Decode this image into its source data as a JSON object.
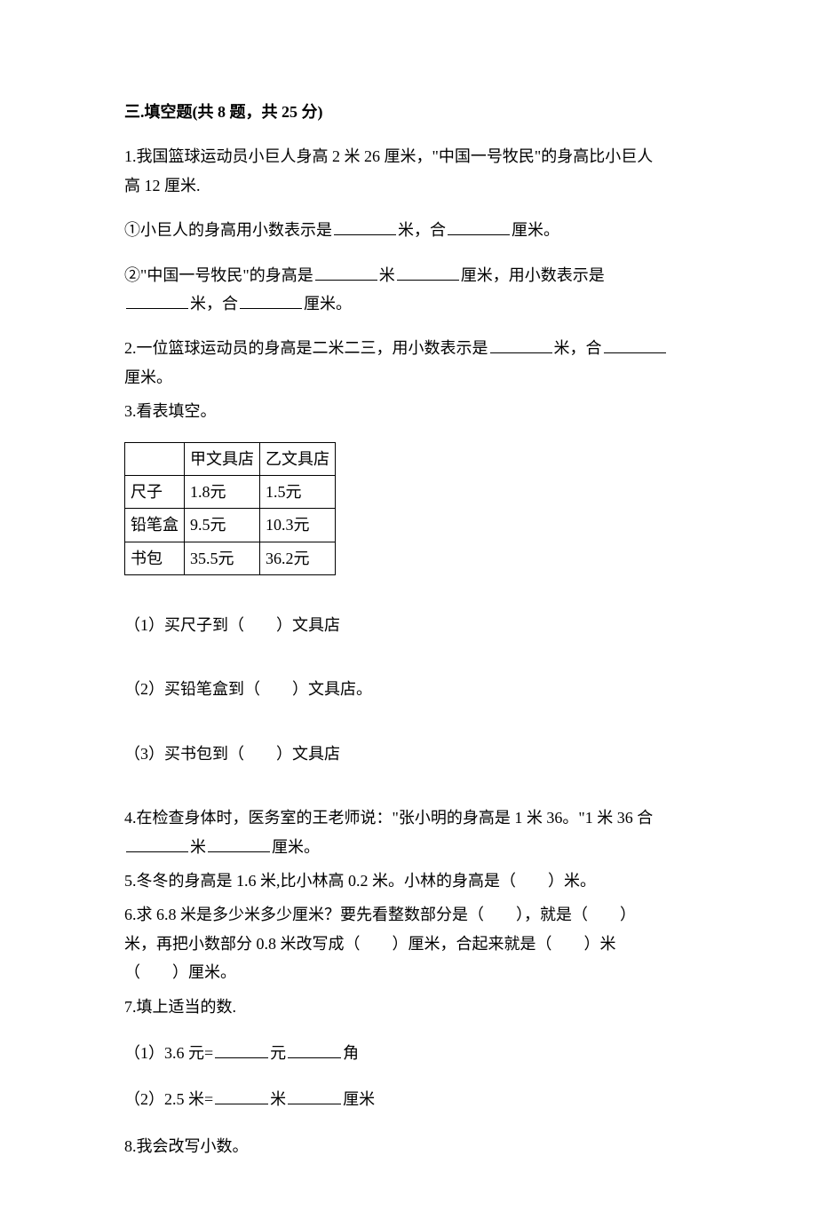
{
  "section": {
    "title": "三.填空题(共 8 题，共 25 分)"
  },
  "q1": {
    "stem_a": "1.我国篮球运动员小巨人身高 2 米 26 厘米，\"中国一号牧民\"的身高比小巨人",
    "stem_b": "高 12 厘米.",
    "sub1_a": "①小巨人的身高用小数表示是",
    "sub1_b": "米，合",
    "sub1_c": "厘米。",
    "sub2_a": "②\"中国一号牧民\"的身高是",
    "sub2_b": "米",
    "sub2_c": "厘米，用小数表示是",
    "sub2_d": "米，合",
    "sub2_e": "厘米。"
  },
  "q2": {
    "a": "2.一位篮球运动员的身高是二米二三，用小数表示是",
    "b": "米，合",
    "c": "厘米。"
  },
  "q3": {
    "stem": "3.看表填空。",
    "table": {
      "columns": [
        "",
        "甲文具店",
        "乙文具店"
      ],
      "rows": [
        [
          "尺子",
          "1.8元",
          "1.5元"
        ],
        [
          "铅笔盒",
          "9.5元",
          "10.3元"
        ],
        [
          "书包",
          "35.5元",
          "36.2元"
        ]
      ]
    },
    "sub1": "（1）买尺子到（　　）文具店",
    "sub2": "（2）买铅笔盒到（　　）文具店。",
    "sub3": "（3）买书包到（　　）文具店"
  },
  "q4": {
    "a": "4.在检查身体时，医务室的王老师说：\"张小明的身高是 1 米 36。\"1 米 36 合",
    "b": "米",
    "c": "厘米。"
  },
  "q5": {
    "text": "5.冬冬的身高是 1.6 米,比小林高 0.2 米。小林的身高是（　　）米。"
  },
  "q6": {
    "a": "6.求 6.8 米是多少米多少厘米？要先看整数部分是（　　），就是（　　）",
    "b": "米，再把小数部分 0.8 米改写成（　　）厘米，合起来就是（　　）米",
    "c": "（　　）厘米。"
  },
  "q7": {
    "stem": "7.填上适当的数.",
    "sub1_a": "（1）3.6 元=",
    "sub1_b": "元",
    "sub1_c": "角",
    "sub2_a": "（2）2.5 米=",
    "sub2_b": "米",
    "sub2_c": "厘米"
  },
  "q8": {
    "text": "8.我会改写小数。"
  }
}
